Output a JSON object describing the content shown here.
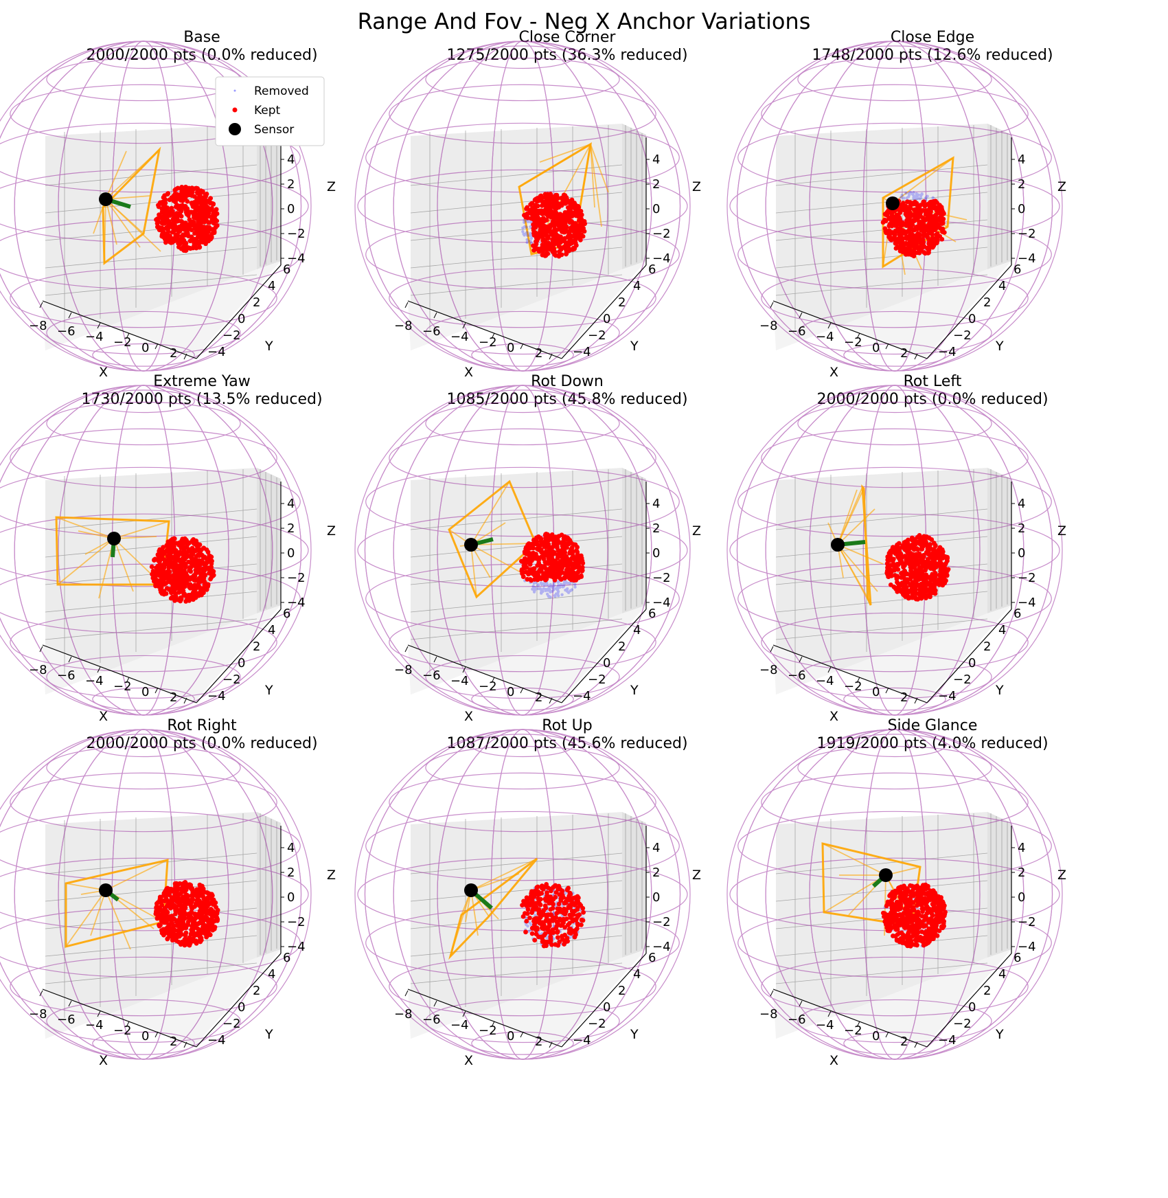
{
  "figure": {
    "title": "Range And Fov - Neg X Anchor Variations"
  },
  "legend": {
    "removed": "Removed",
    "kept": "Kept",
    "sensor": "Sensor"
  },
  "axes": {
    "x_label": "X",
    "y_label": "Y",
    "z_label": "Z",
    "x_ticks": [
      "−8",
      "−6",
      "−4",
      "−2",
      "0",
      "2"
    ],
    "y_ticks": [
      "−4",
      "−2",
      "0",
      "2",
      "4",
      "6"
    ],
    "z_ticks": [
      "−4",
      "−2",
      "0",
      "2",
      "4"
    ]
  },
  "colors": {
    "wireframe": "#9b30a0",
    "kept": "#ff0000",
    "removed": "#0000ff",
    "fov": "#ffa500",
    "sensor": "#000000",
    "direction": "#1a7a1a",
    "grid": "#888888",
    "pane": "#ececec"
  },
  "chart_data": [
    {
      "type": "scatter3d",
      "title": "Base",
      "subtitle": "2000/2000 pts (0.0% reduced)",
      "kept": 2000,
      "total": 2000,
      "reduced_pct": 0.0,
      "show_legend": true
    },
    {
      "type": "scatter3d",
      "title": "Close Corner",
      "subtitle": "1275/2000 pts (36.3% reduced)",
      "kept": 1275,
      "total": 2000,
      "reduced_pct": 36.3,
      "show_legend": false
    },
    {
      "type": "scatter3d",
      "title": "Close Edge",
      "subtitle": "1748/2000 pts (12.6% reduced)",
      "kept": 1748,
      "total": 2000,
      "reduced_pct": 12.6,
      "show_legend": false
    },
    {
      "type": "scatter3d",
      "title": "Extreme Yaw",
      "subtitle": "1730/2000 pts (13.5% reduced)",
      "kept": 1730,
      "total": 2000,
      "reduced_pct": 13.5,
      "show_legend": false
    },
    {
      "type": "scatter3d",
      "title": "Rot Down",
      "subtitle": "1085/2000 pts (45.8% reduced)",
      "kept": 1085,
      "total": 2000,
      "reduced_pct": 45.8,
      "show_legend": false
    },
    {
      "type": "scatter3d",
      "title": "Rot Left",
      "subtitle": "2000/2000 pts (0.0% reduced)",
      "kept": 2000,
      "total": 2000,
      "reduced_pct": 0.0,
      "show_legend": false
    },
    {
      "type": "scatter3d",
      "title": "Rot Right",
      "subtitle": "2000/2000 pts (0.0% reduced)",
      "kept": 2000,
      "total": 2000,
      "reduced_pct": 0.0,
      "show_legend": false
    },
    {
      "type": "scatter3d",
      "title": "Rot Up",
      "subtitle": "1087/2000 pts (45.6% reduced)",
      "kept": 1087,
      "total": 2000,
      "reduced_pct": 45.6,
      "show_legend": false
    },
    {
      "type": "scatter3d",
      "title": "Side Glance",
      "subtitle": "1919/2000 pts (4.0% reduced)",
      "kept": 1919,
      "total": 2000,
      "reduced_pct": 4.0,
      "show_legend": false
    }
  ]
}
